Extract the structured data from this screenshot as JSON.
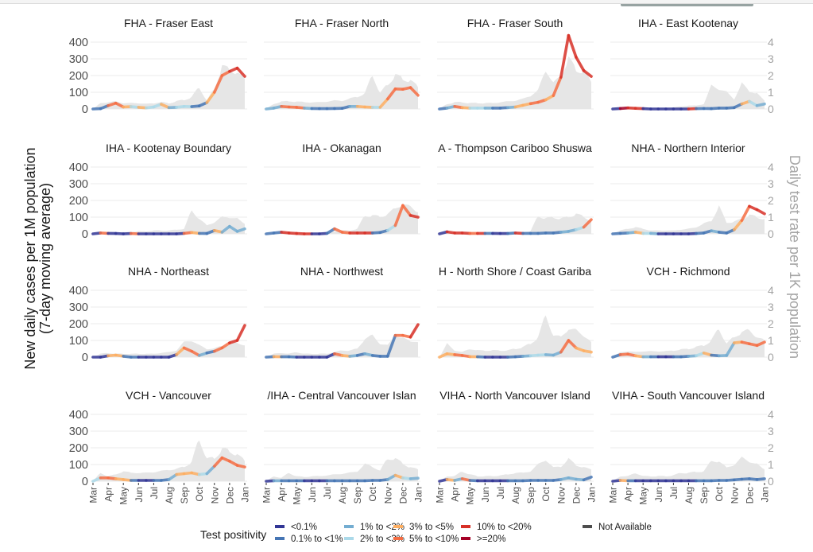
{
  "chart_data": {
    "type": "line",
    "title": "",
    "ylabel_lines": [
      "New daily cases per 1M population",
      "(7-day moving average)"
    ],
    "ylabel_right": "Daily test rate per 1K population",
    "xlabel": "",
    "x_tick_labels": [
      "Mar",
      "Apr",
      "May",
      "Jun",
      "Jul",
      "Aug",
      "Sep",
      "Oct",
      "Nov",
      "Dec",
      "Jan"
    ],
    "x_month_index": [
      0,
      0.5,
      1,
      1.5,
      2,
      2.5,
      3,
      3.5,
      4,
      4.5,
      5,
      5.5,
      6,
      6.5,
      7,
      7.5,
      8,
      8.5,
      9,
      9.5,
      10
    ],
    "y_ticks": [
      0,
      100,
      200,
      300,
      400
    ],
    "ylim": [
      0,
      450
    ],
    "y2_ticks": [
      0,
      1,
      2,
      3,
      4
    ],
    "y2lim": [
      0,
      4.5
    ],
    "grid": true,
    "legend_title": "Test positivity",
    "legend_position": "bottom",
    "positivity_categories": [
      {
        "label": "<0.1%",
        "color": "#313695"
      },
      {
        "label": "0.1% to <1%",
        "color": "#4575b4"
      },
      {
        "label": "1% to <2%",
        "color": "#74add1"
      },
      {
        "label": "2% to <3%",
        "color": "#abd9e9"
      },
      {
        "label": "3% to <5%",
        "color": "#fdae61"
      },
      {
        "label": "5% to <10%",
        "color": "#f46d43"
      },
      {
        "label": "10% to <20%",
        "color": "#d73027"
      },
      {
        "label": ">=20%",
        "color": "#a50026"
      },
      {
        "label": "Not Available",
        "color": "#4d4d4d"
      }
    ],
    "test_rate_color": "#e6e6e6",
    "panels": [
      {
        "title": "FHA - Fraser East",
        "cases": [
          0,
          2,
          20,
          35,
          12,
          14,
          10,
          6,
          12,
          28,
          8,
          10,
          15,
          14,
          18,
          38,
          100,
          200,
          225,
          245,
          195
        ],
        "positivity": [
          1,
          1,
          5,
          5,
          4,
          3,
          4,
          3,
          3,
          4,
          2,
          3,
          3,
          1,
          1,
          4,
          5,
          5,
          6,
          6,
          6
        ],
        "test_rate": [
          0,
          0.35,
          0.4,
          0.45,
          0.35,
          0.35,
          0.35,
          0.3,
          0.35,
          0.4,
          0.35,
          0.45,
          0.55,
          0.7,
          1.3,
          0.5,
          1.2,
          2.6,
          2.3,
          2.2,
          1.8
        ]
      },
      {
        "title": "FHA - Fraser North",
        "cases": [
          0,
          5,
          15,
          12,
          10,
          5,
          3,
          2,
          2,
          3,
          4,
          15,
          15,
          12,
          10,
          10,
          60,
          120,
          118,
          128,
          82
        ],
        "positivity": [
          2,
          2,
          5,
          5,
          5,
          2,
          1,
          1,
          1,
          1,
          1,
          2,
          4,
          4,
          3,
          4,
          5,
          5,
          5,
          5,
          5
        ],
        "test_rate": [
          0,
          0.3,
          0.45,
          0.45,
          0.45,
          0.4,
          0.4,
          0.4,
          0.45,
          0.5,
          0.5,
          0.6,
          0.75,
          0.9,
          2.1,
          0.9,
          1.5,
          2.0,
          1.8,
          1.7,
          1.3
        ]
      },
      {
        "title": "FHA - Fraser South",
        "cases": [
          0,
          5,
          15,
          8,
          5,
          5,
          5,
          5,
          5,
          8,
          12,
          22,
          32,
          40,
          55,
          80,
          190,
          440,
          310,
          230,
          195
        ],
        "positivity": [
          1,
          2,
          5,
          4,
          3,
          3,
          2,
          1,
          1,
          2,
          4,
          4,
          5,
          5,
          4,
          5,
          6,
          6,
          6,
          6,
          6
        ],
        "test_rate": [
          0,
          0.3,
          0.4,
          0.4,
          0.35,
          0.35,
          0.35,
          0.35,
          0.4,
          0.45,
          0.5,
          0.6,
          0.8,
          1.1,
          2.4,
          1.5,
          2.0,
          2.95,
          2.4,
          2.2,
          1.6
        ]
      },
      {
        "title": "IHA - East Kootenay",
        "cases": [
          0,
          3,
          6,
          4,
          2,
          0,
          0,
          0,
          0,
          0,
          0,
          2,
          3,
          2,
          5,
          5,
          8,
          30,
          45,
          20,
          30
        ],
        "positivity": [
          0,
          7,
          6,
          6,
          0,
          0,
          0,
          0,
          0,
          0,
          6,
          1,
          1,
          1,
          1,
          1,
          1,
          4,
          3,
          2,
          4
        ],
        "test_rate": [
          0,
          0.1,
          0.1,
          0.1,
          0.05,
          0.05,
          0.05,
          0.05,
          0.1,
          0.15,
          0.2,
          0.2,
          0.3,
          1.4,
          1.2,
          1.0,
          0.6,
          1.5,
          1.1,
          0.9,
          0.5
        ]
      },
      {
        "title": "IHA - Kootenay Boundary",
        "cases": [
          0,
          5,
          3,
          2,
          0,
          2,
          0,
          0,
          0,
          0,
          0,
          0,
          3,
          8,
          3,
          2,
          20,
          10,
          45,
          15,
          30
        ],
        "positivity": [
          0,
          5,
          0,
          0,
          0,
          5,
          0,
          0,
          0,
          0,
          0,
          0,
          5,
          4,
          1,
          1,
          4,
          2,
          2,
          2,
          4
        ],
        "test_rate": [
          0,
          0.1,
          0.1,
          0.1,
          0.1,
          0.1,
          0.15,
          0.15,
          0.2,
          0.2,
          0.2,
          0.25,
          0.3,
          1.4,
          0.9,
          0.5,
          0.7,
          1.0,
          1.0,
          0.9,
          0.6
        ]
      },
      {
        "title": "IHA - Okanagan",
        "cases": [
          0,
          5,
          10,
          5,
          2,
          0,
          0,
          0,
          3,
          30,
          10,
          5,
          5,
          5,
          5,
          8,
          20,
          50,
          170,
          110,
          100
        ],
        "positivity": [
          1,
          1,
          6,
          6,
          6,
          6,
          0,
          0,
          1,
          5,
          5,
          6,
          6,
          6,
          1,
          1,
          3,
          5,
          5,
          6,
          6
        ],
        "test_rate": [
          0,
          0.1,
          0.15,
          0.1,
          0.1,
          0.05,
          0.05,
          0.05,
          0.1,
          0.15,
          0.2,
          0.2,
          0.3,
          1.1,
          1.1,
          1.0,
          1.2,
          1.5,
          1.8,
          1.6,
          1.3
        ]
      },
      {
        "title": "A - Thompson Cariboo Shuswa",
        "cases": [
          0,
          12,
          5,
          5,
          3,
          3,
          3,
          3,
          2,
          2,
          5,
          3,
          3,
          3,
          5,
          5,
          10,
          15,
          25,
          40,
          85
        ],
        "positivity": [
          0,
          6,
          6,
          6,
          5,
          6,
          1,
          0,
          0,
          1,
          6,
          1,
          1,
          1,
          1,
          1,
          2,
          2,
          3,
          5,
          6
        ],
        "test_rate": [
          0,
          0.1,
          0.1,
          0.1,
          0.05,
          0.05,
          0.05,
          0.05,
          0.05,
          0.1,
          0.1,
          0.1,
          0.15,
          1.1,
          0.9,
          1.0,
          0.9,
          1.0,
          1.2,
          1.0,
          0.8
        ]
      },
      {
        "title": "NHA - Northern Interior",
        "cases": [
          0,
          3,
          5,
          10,
          3,
          3,
          0,
          0,
          0,
          0,
          0,
          2,
          5,
          18,
          10,
          5,
          25,
          80,
          165,
          145,
          120
        ],
        "positivity": [
          1,
          1,
          2,
          4,
          3,
          2,
          0,
          0,
          0,
          0,
          0,
          1,
          1,
          2,
          1,
          1,
          4,
          5,
          6,
          6,
          6
        ],
        "test_rate": [
          0,
          0.2,
          0.3,
          0.4,
          0.3,
          0.2,
          0.2,
          0.2,
          0.2,
          0.25,
          0.3,
          0.4,
          0.6,
          0.8,
          1.6,
          0.7,
          0.7,
          0.9,
          1.1,
          1.0,
          0.9
        ]
      },
      {
        "title": "NHA - Northeast",
        "cases": [
          0,
          0,
          8,
          12,
          5,
          0,
          0,
          0,
          0,
          0,
          0,
          15,
          55,
          35,
          10,
          25,
          35,
          55,
          85,
          100,
          190
        ],
        "positivity": [
          0,
          0,
          4,
          4,
          1,
          1,
          0,
          0,
          0,
          0,
          0,
          4,
          5,
          5,
          2,
          1,
          5,
          5,
          6,
          6,
          7
        ],
        "test_rate": [
          0,
          0.2,
          0.25,
          0.2,
          0.2,
          0.2,
          0.2,
          0.2,
          0.2,
          0.25,
          0.3,
          0.4,
          0.9,
          1.0,
          0.7,
          0.5,
          0.5,
          0.7,
          0.7,
          0.9,
          0.7
        ]
      },
      {
        "title": "NHA - Northwest",
        "cases": [
          0,
          3,
          2,
          2,
          0,
          0,
          0,
          0,
          0,
          20,
          10,
          5,
          10,
          20,
          10,
          5,
          5,
          130,
          130,
          120,
          195
        ],
        "positivity": [
          1,
          4,
          1,
          1,
          0,
          0,
          0,
          0,
          0,
          5,
          4,
          2,
          1,
          2,
          1,
          1,
          1,
          5,
          5,
          6,
          7
        ],
        "test_rate": [
          0,
          0.2,
          0.25,
          0.2,
          0.3,
          0.2,
          0.2,
          0.2,
          0.2,
          0.3,
          0.4,
          0.4,
          0.5,
          1.1,
          1.3,
          0.8,
          0.7,
          1.3,
          1.1,
          1.0,
          0.9
        ]
      },
      {
        "title": "H - North Shore / Coast Gariba",
        "cases": [
          0,
          20,
          15,
          10,
          3,
          2,
          0,
          0,
          0,
          0,
          2,
          5,
          8,
          12,
          15,
          12,
          30,
          100,
          55,
          38,
          30
        ],
        "positivity": [
          4,
          4,
          5,
          5,
          4,
          1,
          0,
          0,
          0,
          1,
          1,
          2,
          3,
          3,
          2,
          2,
          5,
          5,
          4,
          4,
          4
        ],
        "test_rate": [
          0,
          0.8,
          0.4,
          0.3,
          0.5,
          0.4,
          0.4,
          0.4,
          0.4,
          0.4,
          0.5,
          0.6,
          0.8,
          1.2,
          2.5,
          1.3,
          1.2,
          1.7,
          1.6,
          1.3,
          0.9
        ]
      },
      {
        "title": "VCH - Richmond",
        "cases": [
          0,
          15,
          18,
          8,
          2,
          2,
          2,
          2,
          2,
          2,
          5,
          8,
          25,
          12,
          8,
          10,
          85,
          90,
          80,
          70,
          90
        ],
        "positivity": [
          1,
          5,
          5,
          4,
          2,
          1,
          0,
          0,
          1,
          1,
          2,
          3,
          4,
          1,
          2,
          2,
          4,
          5,
          5,
          5,
          5
        ],
        "test_rate": [
          0,
          0.3,
          0.35,
          0.3,
          0.35,
          0.35,
          0.35,
          0.35,
          0.4,
          0.45,
          0.5,
          0.6,
          0.7,
          1.0,
          1.7,
          0.8,
          1.2,
          1.5,
          1.6,
          1.2,
          1.0
        ]
      },
      {
        "title": "VCH - Vancouver",
        "cases": [
          0,
          20,
          20,
          15,
          10,
          5,
          5,
          5,
          5,
          5,
          10,
          40,
          45,
          50,
          40,
          45,
          90,
          140,
          120,
          95,
          85
        ],
        "positivity": [
          3,
          5,
          5,
          4,
          4,
          1,
          0,
          0,
          1,
          1,
          2,
          4,
          4,
          4,
          3,
          2,
          5,
          5,
          5,
          5,
          4
        ],
        "test_rate": [
          0,
          0.5,
          0.3,
          0.4,
          0.6,
          0.5,
          0.5,
          0.5,
          0.55,
          0.6,
          0.7,
          0.7,
          0.9,
          1.1,
          2.6,
          1.3,
          1.4,
          1.9,
          1.8,
          1.6,
          1.2
        ]
      },
      {
        "title": "/IHA - Central Vancouver Islan",
        "cases": [
          0,
          3,
          3,
          3,
          3,
          3,
          3,
          3,
          3,
          3,
          3,
          3,
          3,
          3,
          5,
          5,
          10,
          35,
          20,
          15,
          18
        ],
        "positivity": [
          0,
          2,
          1,
          1,
          1,
          0,
          0,
          0,
          1,
          1,
          1,
          1,
          1,
          1,
          1,
          1,
          2,
          4,
          3,
          2,
          3
        ],
        "test_rate": [
          0,
          0.3,
          0.2,
          0.5,
          0.3,
          0.25,
          0.3,
          0.3,
          0.35,
          0.4,
          0.45,
          0.5,
          0.6,
          1.0,
          0.9,
          0.6,
          1.4,
          1.3,
          1.1,
          0.8,
          0.7
        ]
      },
      {
        "title": "VIHA - North Vancouver Island",
        "cases": [
          0,
          10,
          5,
          15,
          5,
          3,
          3,
          3,
          3,
          3,
          3,
          3,
          5,
          5,
          5,
          5,
          10,
          20,
          12,
          8,
          25
        ],
        "positivity": [
          0,
          4,
          2,
          5,
          1,
          0,
          0,
          0,
          0,
          1,
          1,
          1,
          1,
          1,
          1,
          1,
          2,
          2,
          2,
          1,
          4
        ],
        "test_rate": [
          0,
          0.3,
          0.3,
          0.6,
          0.4,
          0.3,
          0.3,
          0.3,
          0.35,
          0.4,
          0.5,
          0.5,
          0.6,
          1.0,
          1.3,
          0.8,
          0.9,
          1.3,
          1.0,
          0.8,
          0.7
        ]
      },
      {
        "title": "VIHA - South Vancouver Island",
        "cases": [
          0,
          5,
          3,
          3,
          3,
          3,
          3,
          3,
          3,
          3,
          3,
          3,
          3,
          3,
          5,
          5,
          8,
          12,
          15,
          10,
          15
        ],
        "positivity": [
          0,
          4,
          1,
          0,
          0,
          0,
          0,
          0,
          0,
          0,
          0,
          1,
          1,
          1,
          1,
          1,
          1,
          1,
          1,
          1,
          2
        ],
        "test_rate": [
          0,
          0.3,
          0.3,
          0.5,
          0.3,
          0.3,
          0.3,
          0.3,
          0.35,
          0.5,
          0.5,
          0.55,
          0.6,
          1.2,
          1.2,
          0.8,
          1.0,
          1.4,
          1.2,
          1.0,
          0.7
        ]
      }
    ]
  }
}
